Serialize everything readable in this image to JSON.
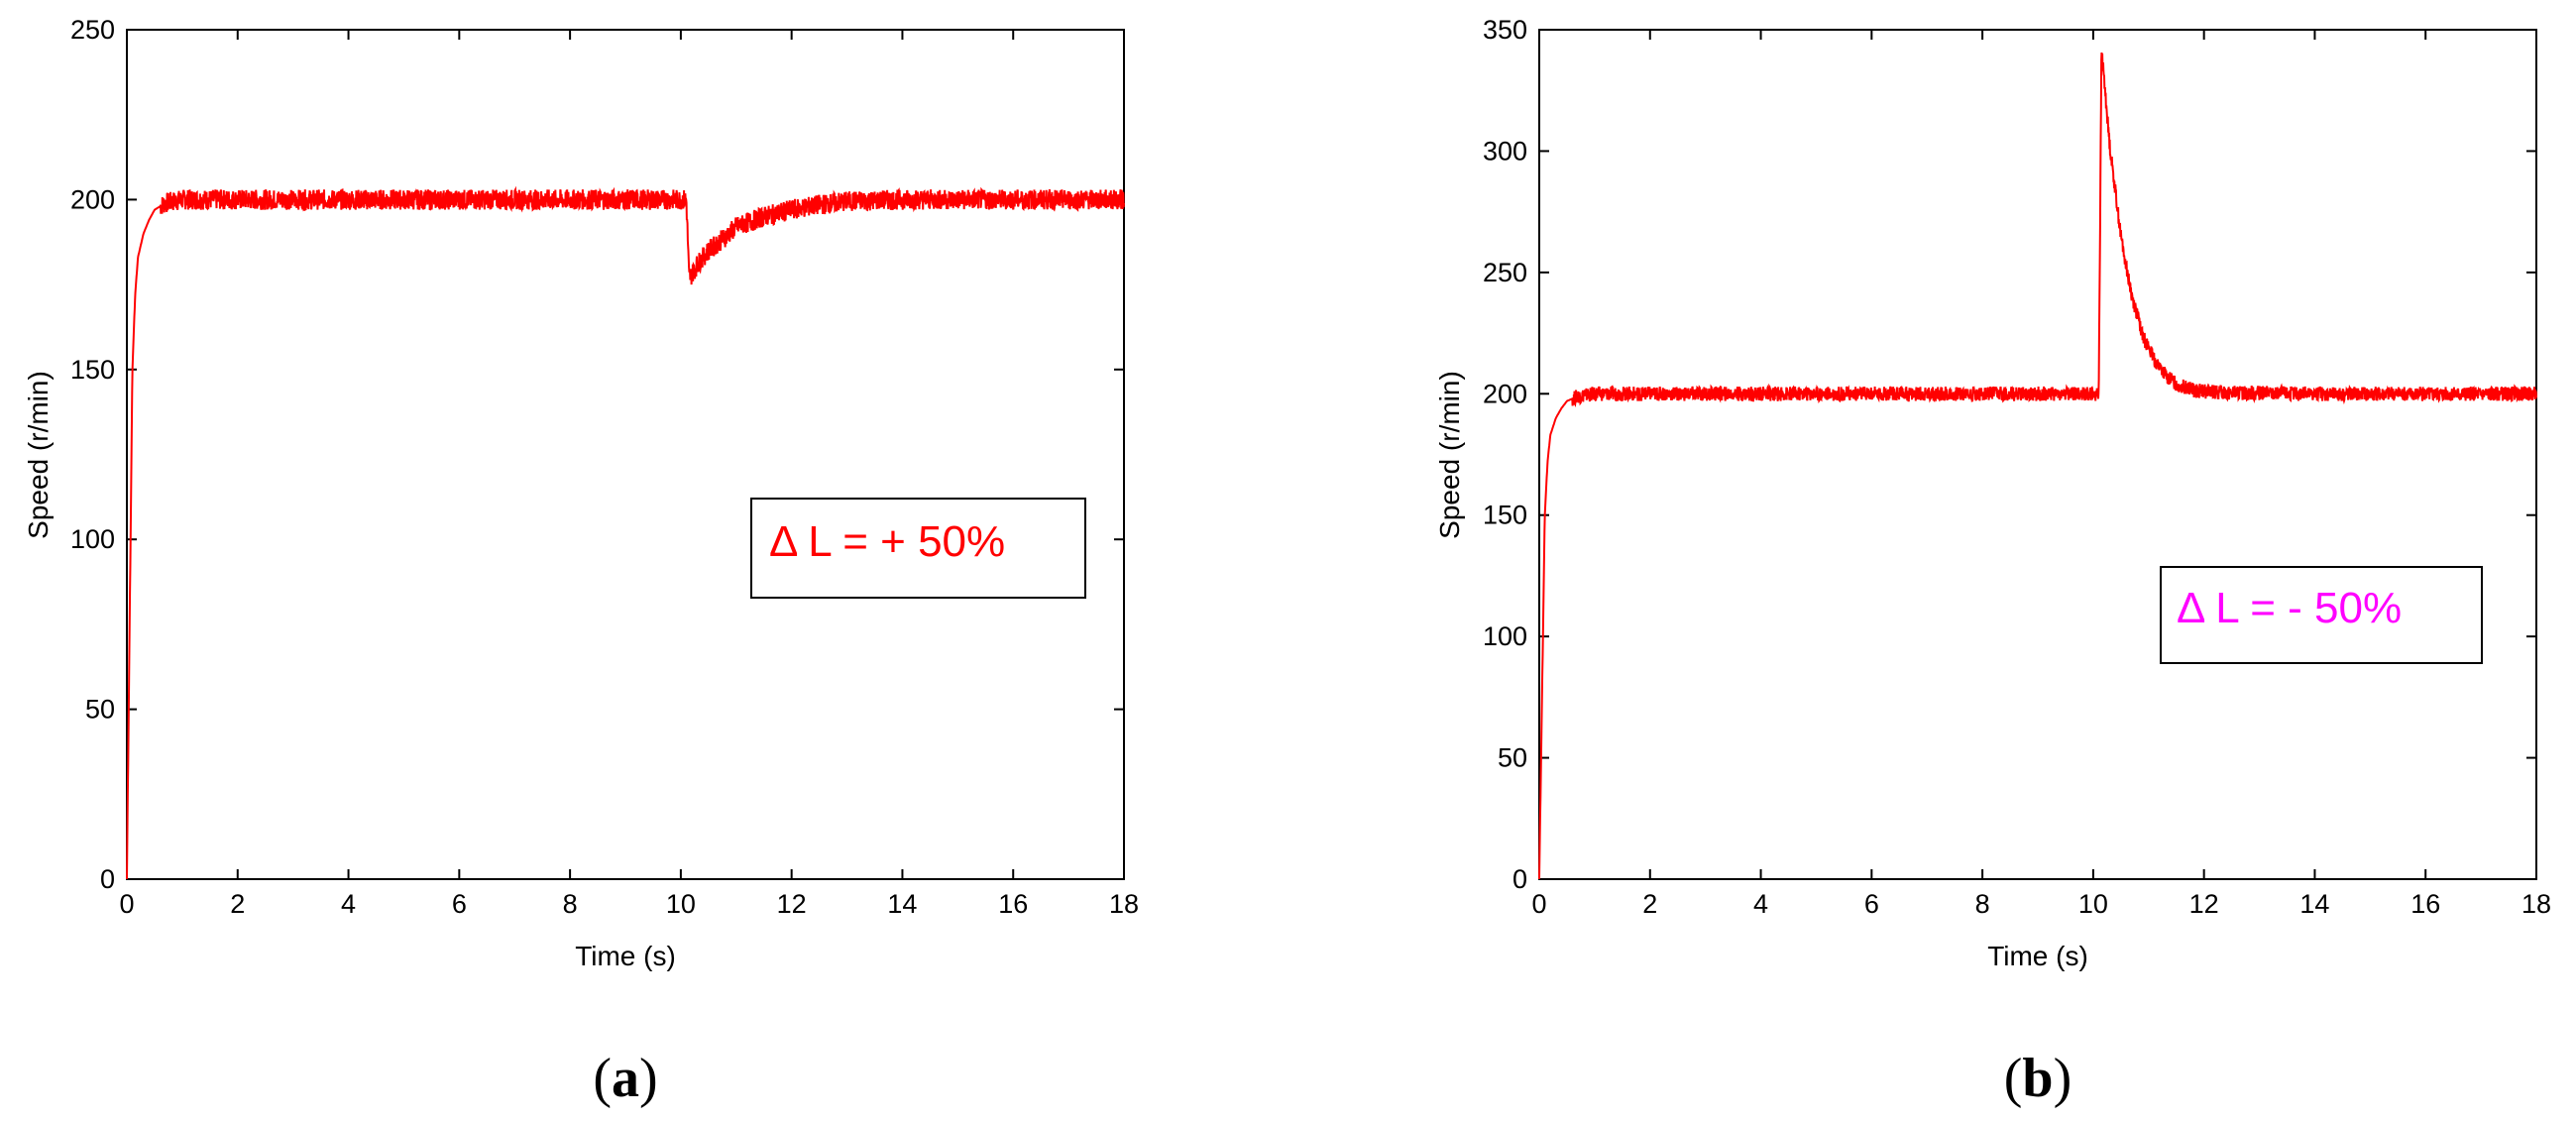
{
  "chart_data": [
    {
      "type": "line",
      "panel_label": "a",
      "xlabel": "Time (s)",
      "ylabel": "Speed (r/min)",
      "xlim": [
        0,
        18
      ],
      "ylim": [
        0,
        250
      ],
      "xticks": [
        0,
        2,
        4,
        6,
        8,
        10,
        12,
        14,
        16,
        18
      ],
      "yticks": [
        0,
        50,
        100,
        150,
        200,
        250
      ],
      "grid": false,
      "line_color": "#ff0000",
      "annotation": {
        "text": "Δ L =  + 50%",
        "color": "#ff0000"
      },
      "series": [
        {
          "x": [
            0,
            0.05,
            0.1,
            0.15,
            0.2,
            0.3,
            0.4,
            0.5,
            0.7,
            1.0,
            2,
            4,
            6,
            8,
            10.0,
            10.1,
            10.15,
            10.2,
            10.3,
            10.5,
            10.8,
            11.0,
            11.5,
            12.0,
            12.5,
            13.0,
            14,
            16,
            18
          ],
          "y": [
            0,
            75,
            150,
            172,
            183,
            190,
            194,
            197,
            199,
            200,
            200,
            200,
            200,
            200,
            200,
            200,
            177,
            178,
            181,
            185,
            189,
            192,
            195,
            197,
            198.5,
            199.5,
            200,
            200,
            200
          ]
        }
      ]
    },
    {
      "type": "line",
      "panel_label": "b",
      "xlabel": "Time (s)",
      "ylabel": "Speed (r/min)",
      "xlim": [
        0,
        18
      ],
      "ylim": [
        0,
        350
      ],
      "xticks": [
        0,
        2,
        4,
        6,
        8,
        10,
        12,
        14,
        16,
        18
      ],
      "yticks": [
        0,
        50,
        100,
        150,
        200,
        250,
        300,
        350
      ],
      "grid": false,
      "line_color": "#ff0000",
      "annotation": {
        "text": "Δ L =  - 50%",
        "color": "#ff00ff"
      },
      "series": [
        {
          "x": [
            0,
            0.05,
            0.1,
            0.15,
            0.2,
            0.3,
            0.4,
            0.5,
            0.7,
            1.0,
            2,
            4,
            6,
            8,
            10.0,
            10.1,
            10.15,
            10.3,
            10.5,
            10.7,
            10.9,
            11.1,
            11.3,
            11.5,
            11.8,
            12.2,
            14,
            16,
            18
          ],
          "y": [
            0,
            75,
            150,
            172,
            183,
            190,
            194,
            197,
            199,
            200,
            200,
            200,
            200,
            200,
            200,
            200,
            342,
            302,
            265,
            240,
            224,
            214,
            208,
            204,
            201.5,
            200.5,
            200,
            200,
            200
          ]
        }
      ]
    }
  ]
}
